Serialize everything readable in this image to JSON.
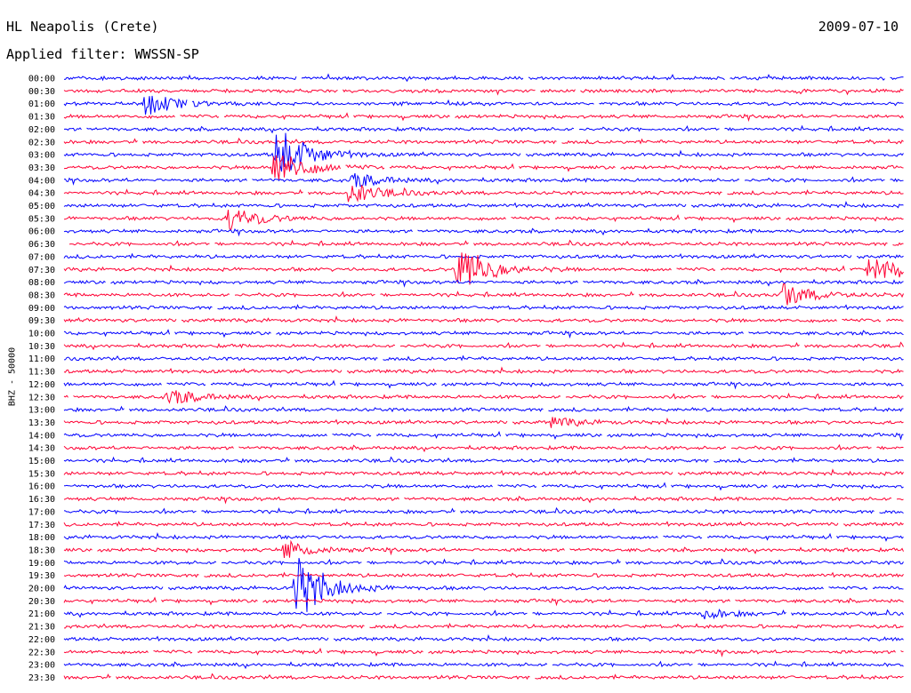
{
  "header": {
    "station": "HL Neapolis (Crete)",
    "date": "2009-07-10",
    "filter": "Applied filter: WWSSN-SP"
  },
  "colors": {
    "blue": "#0000ff",
    "red": "#ff0033"
  },
  "chart_data": {
    "type": "line",
    "title": "HL Neapolis (Crete)",
    "subtitle": "Applied filter: WWSSN-SP",
    "ylabel": "BHZ - 50000",
    "xlabel": "",
    "traces": [
      {
        "label": "00:00",
        "color": "#0000ff"
      },
      {
        "label": "00:30",
        "color": "#ff0033"
      },
      {
        "label": "01:00",
        "color": "#0000ff"
      },
      {
        "label": "01:30",
        "color": "#ff0033"
      },
      {
        "label": "02:00",
        "color": "#0000ff"
      },
      {
        "label": "02:30",
        "color": "#ff0033"
      },
      {
        "label": "03:00",
        "color": "#0000ff"
      },
      {
        "label": "03:30",
        "color": "#ff0033"
      },
      {
        "label": "04:00",
        "color": "#0000ff"
      },
      {
        "label": "04:30",
        "color": "#ff0033"
      },
      {
        "label": "05:00",
        "color": "#0000ff"
      },
      {
        "label": "05:30",
        "color": "#ff0033"
      },
      {
        "label": "06:00",
        "color": "#0000ff"
      },
      {
        "label": "06:30",
        "color": "#ff0033"
      },
      {
        "label": "07:00",
        "color": "#0000ff"
      },
      {
        "label": "07:30",
        "color": "#ff0033"
      },
      {
        "label": "08:00",
        "color": "#0000ff"
      },
      {
        "label": "08:30",
        "color": "#ff0033"
      },
      {
        "label": "09:00",
        "color": "#0000ff"
      },
      {
        "label": "09:30",
        "color": "#ff0033"
      },
      {
        "label": "10:00",
        "color": "#0000ff"
      },
      {
        "label": "10:30",
        "color": "#ff0033"
      },
      {
        "label": "11:00",
        "color": "#0000ff"
      },
      {
        "label": "11:30",
        "color": "#ff0033"
      },
      {
        "label": "12:00",
        "color": "#0000ff"
      },
      {
        "label": "12:30",
        "color": "#ff0033"
      },
      {
        "label": "13:00",
        "color": "#0000ff"
      },
      {
        "label": "13:30",
        "color": "#ff0033"
      },
      {
        "label": "14:00",
        "color": "#0000ff"
      },
      {
        "label": "14:30",
        "color": "#ff0033"
      },
      {
        "label": "15:00",
        "color": "#0000ff"
      },
      {
        "label": "15:30",
        "color": "#ff0033"
      },
      {
        "label": "16:00",
        "color": "#0000ff"
      },
      {
        "label": "16:30",
        "color": "#ff0033"
      },
      {
        "label": "17:00",
        "color": "#0000ff"
      },
      {
        "label": "17:30",
        "color": "#ff0033"
      },
      {
        "label": "18:00",
        "color": "#0000ff"
      },
      {
        "label": "18:30",
        "color": "#ff0033"
      },
      {
        "label": "19:00",
        "color": "#0000ff"
      },
      {
        "label": "19:30",
        "color": "#ff0033"
      },
      {
        "label": "20:00",
        "color": "#0000ff"
      },
      {
        "label": "20:30",
        "color": "#ff0033"
      },
      {
        "label": "21:00",
        "color": "#0000ff"
      },
      {
        "label": "21:30",
        "color": "#ff0033"
      },
      {
        "label": "22:00",
        "color": "#0000ff"
      },
      {
        "label": "22:30",
        "color": "#ff0033"
      },
      {
        "label": "23:00",
        "color": "#0000ff"
      },
      {
        "label": "23:30",
        "color": "#ff0033"
      }
    ],
    "events": [
      {
        "trace": "01:00",
        "minute": 2.9,
        "amplitude": 1.0
      },
      {
        "trace": "03:00",
        "minute": 7.6,
        "amplitude": 2.4
      },
      {
        "trace": "03:30",
        "minute": 7.5,
        "amplitude": 1.8
      },
      {
        "trace": "04:00",
        "minute": 10.3,
        "amplitude": 0.6
      },
      {
        "trace": "04:30",
        "minute": 10.2,
        "amplitude": 0.9
      },
      {
        "trace": "05:30",
        "minute": 5.9,
        "amplitude": 1.0
      },
      {
        "trace": "07:30",
        "minute": 14.1,
        "amplitude": 2.2
      },
      {
        "trace": "07:30",
        "minute": 28.8,
        "amplitude": 1.2
      },
      {
        "trace": "08:30",
        "minute": 25.7,
        "amplitude": 1.0
      },
      {
        "trace": "12:30",
        "minute": 3.7,
        "amplitude": 0.7
      },
      {
        "trace": "13:30",
        "minute": 17.4,
        "amplitude": 0.4
      },
      {
        "trace": "18:30",
        "minute": 7.9,
        "amplitude": 0.7
      },
      {
        "trace": "20:00",
        "minute": 8.3,
        "amplitude": 2.8
      },
      {
        "trace": "21:00",
        "minute": 22.8,
        "amplitude": 0.4
      }
    ]
  }
}
